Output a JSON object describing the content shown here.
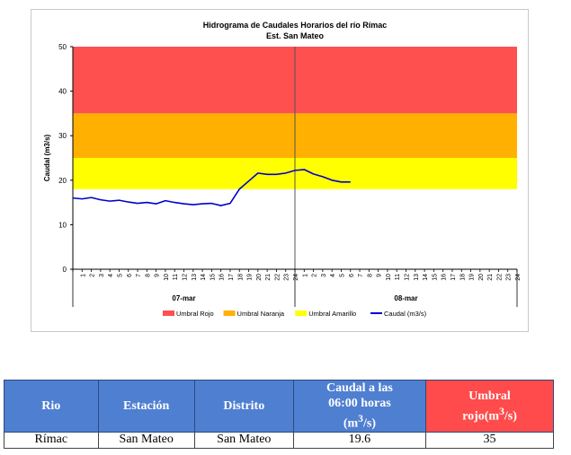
{
  "chart_data": {
    "type": "line",
    "title": "Hidrograma de Caudales Horarios del río Rímac",
    "subtitle": "Est. San Mateo",
    "ylabel": "Caudal  (m3/s)",
    "ylim": [
      0,
      50
    ],
    "yticks": [
      "0",
      "10",
      "20",
      "30",
      "40",
      "50"
    ],
    "hour_ticks_day1": [
      "1",
      "2",
      "3",
      "4",
      "5",
      "6",
      "7",
      "8",
      "9",
      "10",
      "11",
      "12",
      "13",
      "14",
      "15",
      "16",
      "17",
      "18",
      "19",
      "20",
      "21",
      "22",
      "23",
      "24"
    ],
    "hour_ticks_day2": [
      "1",
      "2",
      "3",
      "4",
      "5",
      "6",
      "7",
      "8",
      "9",
      "10",
      "11",
      "12",
      "13",
      "14",
      "15",
      "16",
      "17",
      "18",
      "19",
      "20",
      "21",
      "22",
      "23",
      "24"
    ],
    "day_labels": [
      "07-mar",
      "08-mar"
    ],
    "bands": [
      {
        "name": "Umbral Rojo",
        "from": 35,
        "to": 50,
        "color": "#ff5050"
      },
      {
        "name": "Umbral Naranja",
        "from": 25,
        "to": 35,
        "color": "#ffb000"
      },
      {
        "name": "Umbral Amarillo",
        "from": 18,
        "to": 25,
        "color": "#ffff00"
      }
    ],
    "series": [
      {
        "name": "Caudal (m3/s)",
        "color": "#0000cc",
        "x": [
          0,
          1,
          2,
          3,
          4,
          5,
          6,
          7,
          8,
          9,
          10,
          11,
          12,
          13,
          14,
          15,
          16,
          17,
          18,
          19,
          20,
          21,
          22,
          23,
          24,
          25,
          26,
          27,
          28,
          29,
          30
        ],
        "values": [
          16.0,
          15.8,
          16.1,
          15.6,
          15.3,
          15.5,
          15.1,
          14.8,
          15.0,
          14.7,
          15.4,
          15.0,
          14.7,
          14.5,
          14.7,
          14.8,
          14.3,
          14.8,
          18.0,
          19.8,
          21.6,
          21.3,
          21.3,
          21.6,
          22.2,
          22.4,
          21.4,
          20.8,
          20.0,
          19.6,
          19.6
        ]
      }
    ],
    "legend": {
      "position": "bottom"
    },
    "grid": false
  },
  "table": {
    "headers": {
      "rio": "Rio",
      "estacion": "Estación",
      "distrito": "Distrito",
      "caudal_line1": "Caudal a las",
      "caudal_line2": "06:00 horas",
      "caudal_unit": "(m",
      "caudal_sup": "3",
      "caudal_unit_end": "/s)",
      "umbral_line1": "Umbral",
      "umbral_line2": "rojo(m",
      "umbral_sup": "3",
      "umbral_end": "/s)"
    },
    "row": {
      "rio": "Rímac",
      "estacion": "San Mateo",
      "distrito": "San Mateo",
      "caudal": "19.6",
      "umbral": "35"
    }
  }
}
